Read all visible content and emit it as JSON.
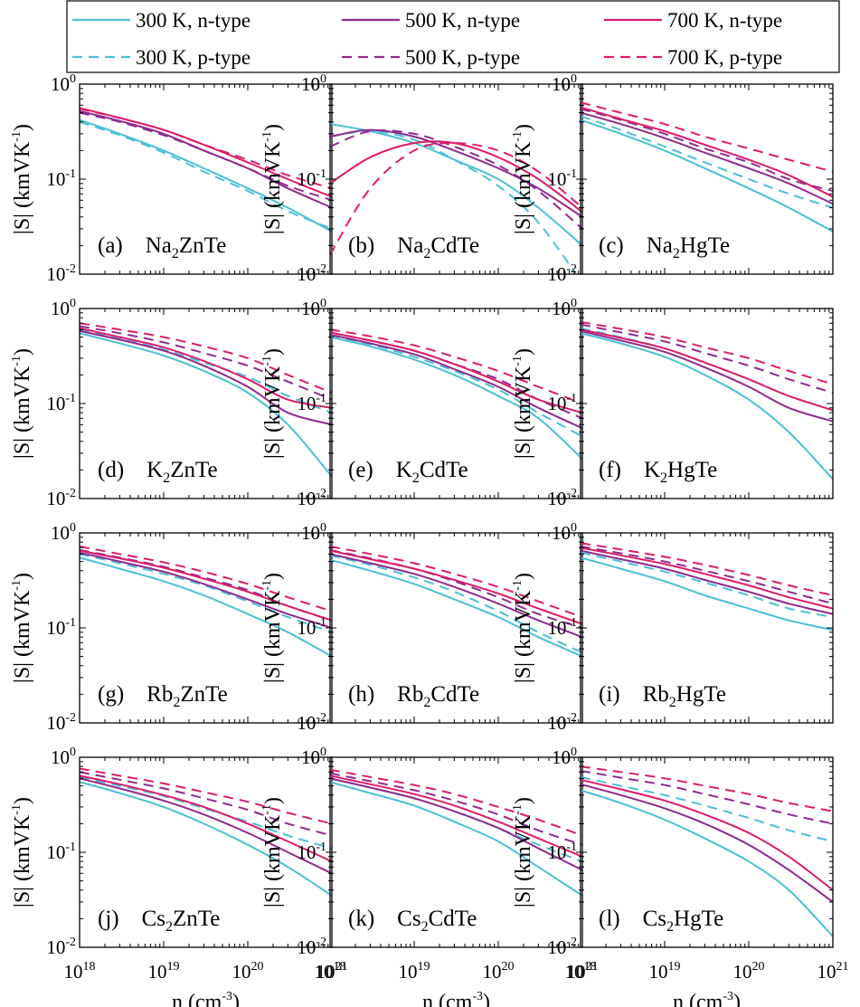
{
  "chart_data": {
    "type": "line",
    "layout": "4x3 grid of log-log panels",
    "xlabel_base": "n (cm",
    "xlabel_exp": "-3",
    "xlabel_close": ")",
    "ylabel_base": "|S| (kmVK",
    "ylabel_exp": "-1",
    "ylabel_close": ")",
    "xlim": [
      1e+18,
      1e+21
    ],
    "ylim": [
      0.01,
      1
    ],
    "x_ticks": [
      {
        "base": "10",
        "exp": "18"
      },
      {
        "base": "10",
        "exp": "19"
      },
      {
        "base": "10",
        "exp": "20"
      },
      {
        "base": "10",
        "exp": "21"
      }
    ],
    "y_ticks": [
      {
        "base": "10",
        "exp": "0"
      },
      {
        "base": "10",
        "exp": "-1"
      },
      {
        "base": "10",
        "exp": "-2"
      }
    ],
    "x_samples": [
      1e+18,
      3e+18,
      1e+19,
      3e+19,
      1e+20,
      3e+20,
      1e+21
    ],
    "legend": {
      "position": "top",
      "entries": [
        {
          "label": "300 K, n-type",
          "series": "300n"
        },
        {
          "label": "500 K, n-type",
          "series": "500n"
        },
        {
          "label": "700 K, n-type",
          "series": "700n"
        },
        {
          "label": "300 K, p-type",
          "series": "300p"
        },
        {
          "label": "500 K, p-type",
          "series": "500p"
        },
        {
          "label": "700 K, p-type",
          "series": "700p"
        }
      ]
    },
    "series_styles": {
      "300n": {
        "color": "#4bbfd4",
        "dash": "solid"
      },
      "500n": {
        "color": "#8f2a8f",
        "dash": "solid"
      },
      "700n": {
        "color": "#dd1c6b",
        "dash": "solid"
      },
      "300p": {
        "color": "#4bbfd4",
        "dash": "dashed"
      },
      "500p": {
        "color": "#8f2a8f",
        "dash": "dashed"
      },
      "700p": {
        "color": "#dd1c6b",
        "dash": "dashed"
      }
    },
    "panels": [
      {
        "tag": "(a)",
        "pre": "Na",
        "sub": "2",
        "post": "ZnTe",
        "series": {
          "300n": [
            0.42,
            0.3,
            0.2,
            0.13,
            0.08,
            0.05,
            0.028
          ],
          "300p": [
            0.4,
            0.29,
            0.19,
            0.12,
            0.075,
            0.046,
            0.03
          ],
          "500n": [
            0.52,
            0.41,
            0.3,
            0.2,
            0.13,
            0.08,
            0.05
          ],
          "500p": [
            0.5,
            0.4,
            0.29,
            0.2,
            0.13,
            0.085,
            0.06
          ],
          "700n": [
            0.56,
            0.44,
            0.33,
            0.23,
            0.15,
            0.1,
            0.065
          ],
          "700p": [
            0.55,
            0.44,
            0.33,
            0.23,
            0.16,
            0.11,
            0.08
          ]
        }
      },
      {
        "tag": "(b)",
        "pre": "Na",
        "sub": "2",
        "post": "CdTe",
        "series": {
          "300n": [
            0.38,
            0.32,
            0.24,
            0.16,
            0.1,
            0.05,
            0.02
          ],
          "300p": [
            0.28,
            0.32,
            0.26,
            0.16,
            0.085,
            0.035,
            0.008
          ],
          "500n": [
            0.28,
            0.33,
            0.28,
            0.2,
            0.13,
            0.08,
            0.04
          ],
          "500p": [
            0.22,
            0.32,
            0.3,
            0.22,
            0.14,
            0.075,
            0.03
          ],
          "700n": [
            0.09,
            0.17,
            0.24,
            0.24,
            0.17,
            0.1,
            0.045
          ],
          "700p": [
            0.016,
            0.08,
            0.2,
            0.24,
            0.2,
            0.12,
            0.05
          ]
        }
      },
      {
        "tag": "(c)",
        "pre": "Na",
        "sub": "2",
        "post": "HgTe",
        "series": {
          "300n": [
            0.42,
            0.3,
            0.2,
            0.13,
            0.08,
            0.05,
            0.028
          ],
          "300p": [
            0.46,
            0.33,
            0.22,
            0.15,
            0.1,
            0.07,
            0.05
          ],
          "500n": [
            0.5,
            0.38,
            0.27,
            0.19,
            0.13,
            0.09,
            0.055
          ],
          "500p": [
            0.55,
            0.42,
            0.3,
            0.21,
            0.15,
            0.1,
            0.075
          ],
          "700n": [
            0.57,
            0.43,
            0.32,
            0.23,
            0.16,
            0.11,
            0.065
          ],
          "700p": [
            0.64,
            0.5,
            0.38,
            0.28,
            0.21,
            0.16,
            0.12
          ]
        }
      },
      {
        "tag": "(d)",
        "pre": "K",
        "sub": "2",
        "post": "ZnTe",
        "series": {
          "300n": [
            0.55,
            0.43,
            0.32,
            0.22,
            0.13,
            0.06,
            0.017
          ],
          "300p": [
            0.6,
            0.48,
            0.37,
            0.27,
            0.19,
            0.12,
            0.08
          ],
          "500n": [
            0.58,
            0.47,
            0.36,
            0.25,
            0.15,
            0.08,
            0.06
          ],
          "500p": [
            0.65,
            0.55,
            0.44,
            0.34,
            0.25,
            0.17,
            0.11
          ],
          "700n": [
            0.62,
            0.5,
            0.39,
            0.28,
            0.18,
            0.11,
            0.09
          ],
          "700p": [
            0.7,
            0.6,
            0.5,
            0.4,
            0.3,
            0.2,
            0.13
          ]
        }
      },
      {
        "tag": "(e)",
        "pre": "K",
        "sub": "2",
        "post": "CdTe",
        "series": {
          "300n": [
            0.5,
            0.4,
            0.29,
            0.2,
            0.12,
            0.07,
            0.026
          ],
          "300p": [
            0.52,
            0.42,
            0.31,
            0.22,
            0.14,
            0.08,
            0.045
          ],
          "500n": [
            0.53,
            0.43,
            0.33,
            0.23,
            0.15,
            0.09,
            0.055
          ],
          "500p": [
            0.56,
            0.46,
            0.36,
            0.26,
            0.18,
            0.11,
            0.07
          ],
          "700n": [
            0.56,
            0.46,
            0.36,
            0.26,
            0.17,
            0.11,
            0.08
          ],
          "700p": [
            0.6,
            0.51,
            0.41,
            0.31,
            0.22,
            0.15,
            0.1
          ]
        }
      },
      {
        "tag": "(f)",
        "pre": "K",
        "sub": "2",
        "post": "HgTe",
        "series": {
          "300n": [
            0.55,
            0.43,
            0.31,
            0.2,
            0.11,
            0.05,
            0.016
          ],
          "300p": [
            0.62,
            0.5,
            0.38,
            0.27,
            0.18,
            0.12,
            0.085
          ],
          "500n": [
            0.58,
            0.46,
            0.35,
            0.24,
            0.15,
            0.09,
            0.065
          ],
          "500p": [
            0.68,
            0.56,
            0.45,
            0.34,
            0.25,
            0.18,
            0.13
          ],
          "700n": [
            0.6,
            0.49,
            0.38,
            0.27,
            0.18,
            0.12,
            0.085
          ],
          "700p": [
            0.72,
            0.61,
            0.5,
            0.39,
            0.3,
            0.22,
            0.16
          ]
        }
      },
      {
        "tag": "(g)",
        "pre": "Rb",
        "sub": "2",
        "post": "ZnTe",
        "series": {
          "300n": [
            0.55,
            0.42,
            0.31,
            0.22,
            0.14,
            0.09,
            0.05
          ],
          "300p": [
            0.6,
            0.48,
            0.37,
            0.28,
            0.19,
            0.13,
            0.09
          ],
          "500n": [
            0.62,
            0.5,
            0.39,
            0.29,
            0.2,
            0.14,
            0.1
          ],
          "500p": [
            0.66,
            0.55,
            0.44,
            0.34,
            0.25,
            0.17,
            0.12
          ],
          "700n": [
            0.65,
            0.54,
            0.43,
            0.33,
            0.24,
            0.17,
            0.12
          ],
          "700p": [
            0.72,
            0.6,
            0.49,
            0.39,
            0.29,
            0.21,
            0.15
          ]
        }
      },
      {
        "tag": "(h)",
        "pre": "Rb",
        "sub": "2",
        "post": "CdTe",
        "series": {
          "300n": [
            0.52,
            0.4,
            0.29,
            0.2,
            0.13,
            0.08,
            0.05
          ],
          "300p": [
            0.58,
            0.46,
            0.34,
            0.24,
            0.15,
            0.09,
            0.055
          ],
          "500n": [
            0.6,
            0.48,
            0.37,
            0.27,
            0.18,
            0.12,
            0.08
          ],
          "500p": [
            0.66,
            0.54,
            0.42,
            0.31,
            0.21,
            0.14,
            0.1
          ],
          "700n": [
            0.65,
            0.53,
            0.42,
            0.32,
            0.23,
            0.16,
            0.11
          ],
          "700p": [
            0.72,
            0.6,
            0.48,
            0.37,
            0.27,
            0.19,
            0.13
          ]
        }
      },
      {
        "tag": "(i)",
        "pre": "Rb",
        "sub": "2",
        "post": "HgTe",
        "series": {
          "300n": [
            0.55,
            0.42,
            0.31,
            0.22,
            0.16,
            0.12,
            0.095
          ],
          "300p": [
            0.62,
            0.5,
            0.39,
            0.3,
            0.22,
            0.16,
            0.13
          ],
          "500n": [
            0.65,
            0.53,
            0.42,
            0.32,
            0.24,
            0.18,
            0.14
          ],
          "500p": [
            0.72,
            0.61,
            0.5,
            0.4,
            0.31,
            0.24,
            0.18
          ],
          "700n": [
            0.7,
            0.58,
            0.47,
            0.37,
            0.28,
            0.21,
            0.16
          ],
          "700p": [
            0.78,
            0.67,
            0.56,
            0.46,
            0.36,
            0.28,
            0.22
          ]
        }
      },
      {
        "tag": "(j)",
        "pre": "Cs",
        "sub": "2",
        "post": "ZnTe",
        "series": {
          "300n": [
            0.55,
            0.42,
            0.3,
            0.2,
            0.12,
            0.07,
            0.035
          ],
          "300p": [
            0.62,
            0.5,
            0.39,
            0.29,
            0.21,
            0.15,
            0.11
          ],
          "500n": [
            0.6,
            0.47,
            0.35,
            0.25,
            0.16,
            0.1,
            0.06
          ],
          "500p": [
            0.7,
            0.58,
            0.47,
            0.37,
            0.28,
            0.2,
            0.15
          ],
          "700n": [
            0.64,
            0.52,
            0.4,
            0.3,
            0.2,
            0.13,
            0.08
          ],
          "700p": [
            0.76,
            0.64,
            0.53,
            0.43,
            0.34,
            0.26,
            0.2
          ]
        }
      },
      {
        "tag": "(k)",
        "pre": "Cs",
        "sub": "2",
        "post": "CdTe",
        "series": {
          "300n": [
            0.55,
            0.42,
            0.31,
            0.21,
            0.13,
            0.07,
            0.035
          ],
          "300p": [
            0.6,
            0.48,
            0.37,
            0.27,
            0.18,
            0.12,
            0.08
          ],
          "500n": [
            0.6,
            0.48,
            0.37,
            0.27,
            0.18,
            0.11,
            0.065
          ],
          "500p": [
            0.68,
            0.56,
            0.45,
            0.35,
            0.25,
            0.17,
            0.12
          ],
          "700n": [
            0.64,
            0.52,
            0.41,
            0.31,
            0.21,
            0.14,
            0.09
          ],
          "700p": [
            0.74,
            0.62,
            0.51,
            0.41,
            0.3,
            0.22,
            0.15
          ]
        }
      },
      {
        "tag": "(l)",
        "pre": "Cs",
        "sub": "2",
        "post": "HgTe",
        "series": {
          "300n": [
            0.45,
            0.33,
            0.22,
            0.14,
            0.08,
            0.04,
            0.013
          ],
          "300p": [
            0.62,
            0.5,
            0.4,
            0.31,
            0.23,
            0.17,
            0.13
          ],
          "500n": [
            0.52,
            0.4,
            0.29,
            0.2,
            0.12,
            0.065,
            0.03
          ],
          "500p": [
            0.72,
            0.61,
            0.51,
            0.41,
            0.32,
            0.25,
            0.2
          ],
          "700n": [
            0.58,
            0.46,
            0.35,
            0.25,
            0.16,
            0.09,
            0.04
          ],
          "700p": [
            0.8,
            0.7,
            0.6,
            0.5,
            0.41,
            0.33,
            0.27
          ]
        }
      }
    ]
  }
}
